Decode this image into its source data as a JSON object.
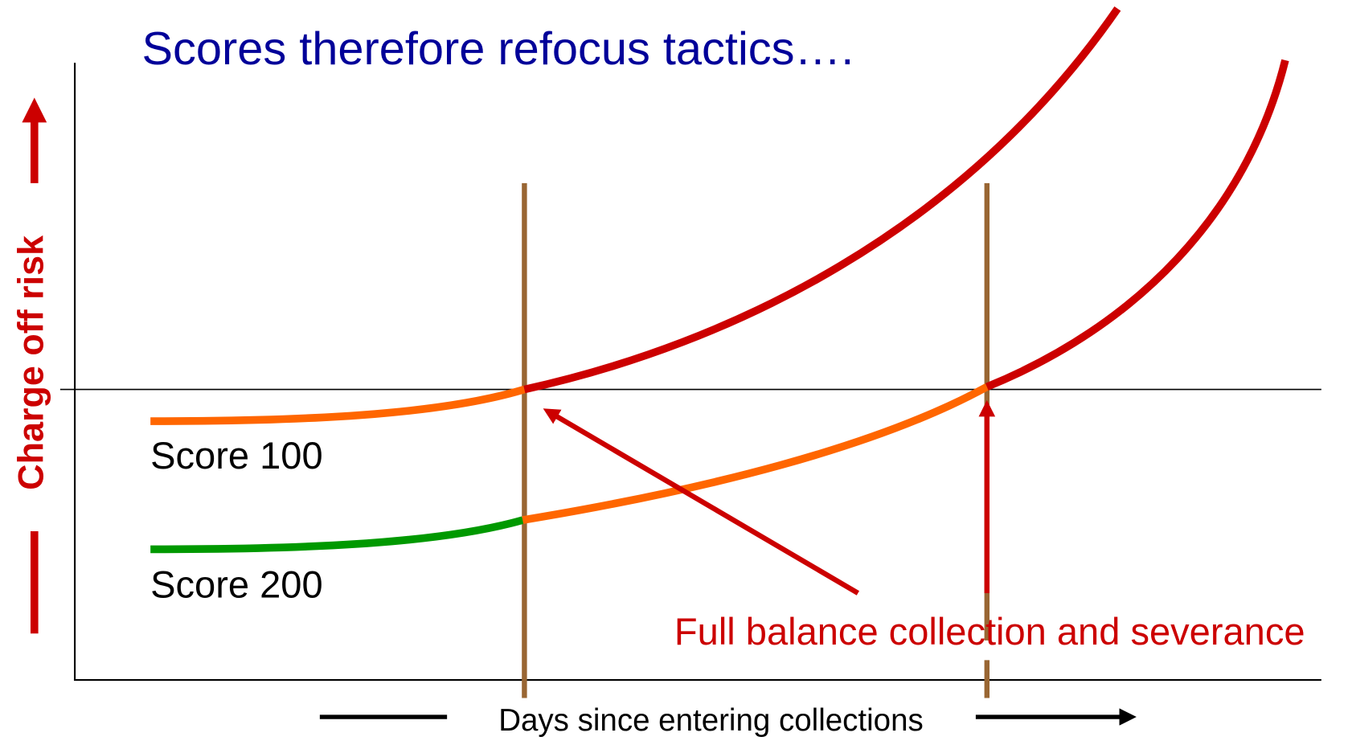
{
  "title": "Scores therefore refocus tactics….",
  "y_axis_label": "Charge off risk",
  "x_axis_label": "Days since entering collections",
  "curves": [
    {
      "label": "Score 100"
    },
    {
      "label": "Score 200"
    }
  ],
  "annotation": "Full balance collection and severance"
}
